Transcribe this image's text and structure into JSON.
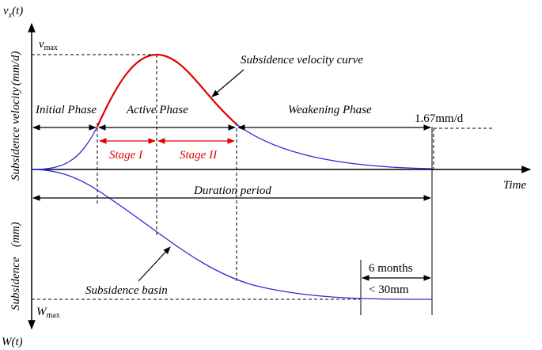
{
  "axes": {
    "y_top_label_main": "v",
    "y_top_label_sub": "x",
    "y_top_label_arg": "(t)",
    "y_bottom_label_main": "W",
    "y_bottom_label_arg": "(t)",
    "x_label": "Time",
    "upper_axis_title": "Subsidence velocity",
    "upper_axis_unit": "(mm/d)",
    "lower_axis_title": "Subsidence",
    "lower_axis_unit": "(mm)",
    "v_max_main": "v",
    "v_max_sub": "max",
    "w_max_main": "W",
    "w_max_sub": "max"
  },
  "phases": {
    "initial": "Initial Phase",
    "active": "Active Phase",
    "weakening": "Weakening Phase",
    "stage1": "Stage I",
    "stage2": "Stage II",
    "threshold": "1.67mm/d",
    "duration": "Duration period"
  },
  "annotations": {
    "velocity_curve": "Subsidence velocity curve",
    "basin": "Subsidence basin",
    "six_months": "6 months",
    "lt_30mm": "< 30mm"
  },
  "colors": {
    "blue_curve": "#2a2ad8",
    "red_curve": "#e00000",
    "axis": "#000000"
  }
}
